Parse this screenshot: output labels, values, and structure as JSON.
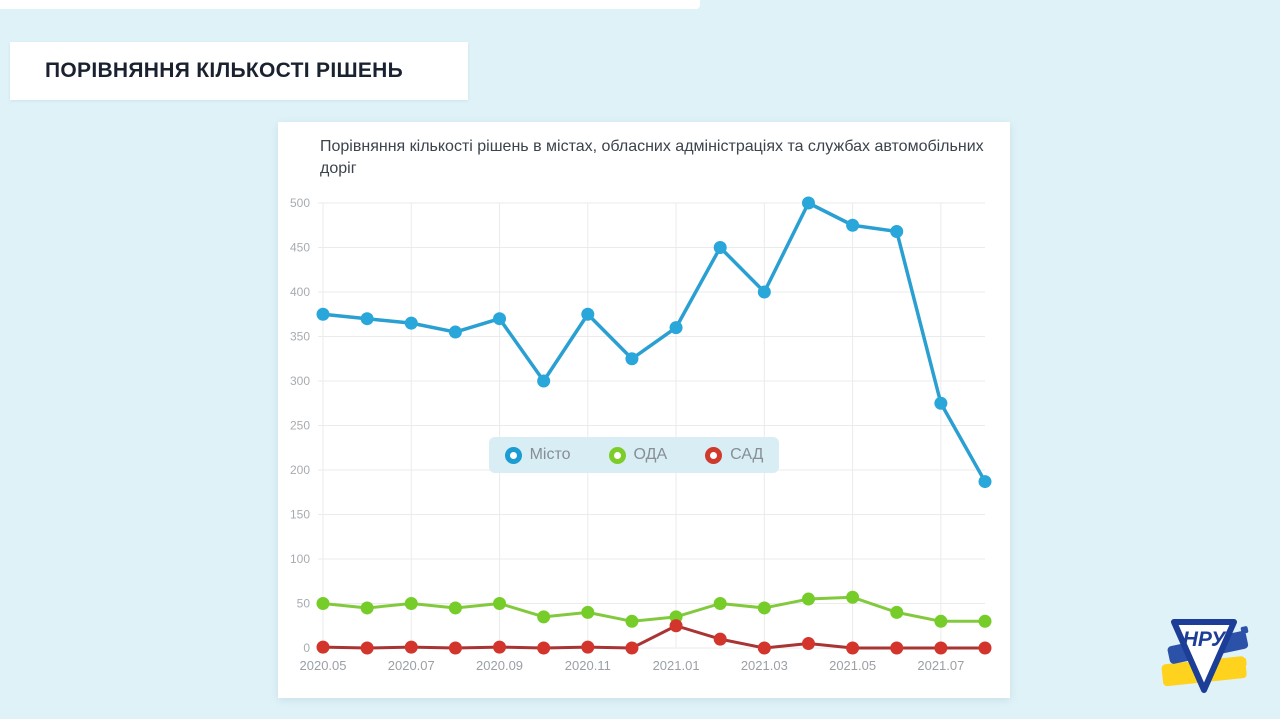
{
  "page": {
    "background_color": "#dff2f8",
    "top_strip_color": "#ffffff"
  },
  "header": {
    "title": "ПОРІВНЯННЯ КІЛЬКОСТІ РІШЕНЬ"
  },
  "chart_card": {
    "title": "Порівняння кількості рішень в містах, обласних адміністраціях та службах автомобільних доріг"
  },
  "chart_data": {
    "type": "line",
    "title": "Порівняння кількості рішень в містах, обласних адміністраціях та службах автомобільних доріг",
    "categories": [
      "2020.05",
      "2020.06",
      "2020.07",
      "2020.08",
      "2020.09",
      "2020.10",
      "2020.11",
      "2020.12",
      "2021.01",
      "2021.02",
      "2021.03",
      "2021.04",
      "2021.05",
      "2021.06",
      "2021.07",
      "2021.08"
    ],
    "x_tick_labels": [
      "2020.05",
      "2020.07",
      "2020.09",
      "2020.11",
      "2021.01",
      "2021.03",
      "2021.05",
      "2021.07"
    ],
    "x_tick_every": 2,
    "series": [
      {
        "name": "Місто",
        "color": "#29a7da",
        "line_color": "#2a9fd2",
        "marker_color": "#1b9cd3",
        "line_width": 3.5,
        "values": [
          375,
          370,
          365,
          355,
          370,
          300,
          375,
          325,
          360,
          450,
          400,
          500,
          475,
          468,
          275,
          187
        ]
      },
      {
        "name": "ОДА",
        "color": "#76cc29",
        "line_color": "#83c93e",
        "marker_color": "#7ccd2a",
        "line_width": 3,
        "values": [
          50,
          45,
          50,
          45,
          50,
          35,
          40,
          30,
          35,
          50,
          45,
          55,
          57,
          40,
          30,
          30
        ]
      },
      {
        "name": "САД",
        "color": "#d3342b",
        "line_color": "#a83434",
        "marker_color": "#cf3a2d",
        "line_width": 3,
        "values": [
          1,
          0,
          1,
          0,
          1,
          0,
          1,
          0,
          25,
          10,
          0,
          5,
          0,
          0,
          0,
          0
        ]
      }
    ],
    "ylim": [
      0,
      500
    ],
    "ytick_step": 50,
    "xlabel": "",
    "ylabel": "",
    "grid": true,
    "legend_position": "center",
    "grid_color": "#ebebeb",
    "y_label_color": "#a7acb1",
    "x_label_color": "#9aa0a6"
  },
  "logo": {
    "letters": "НРУ",
    "flag_blue": "#2b52a8",
    "flag_yellow": "#ffd21e",
    "triangle_color": "#1c3e96"
  }
}
